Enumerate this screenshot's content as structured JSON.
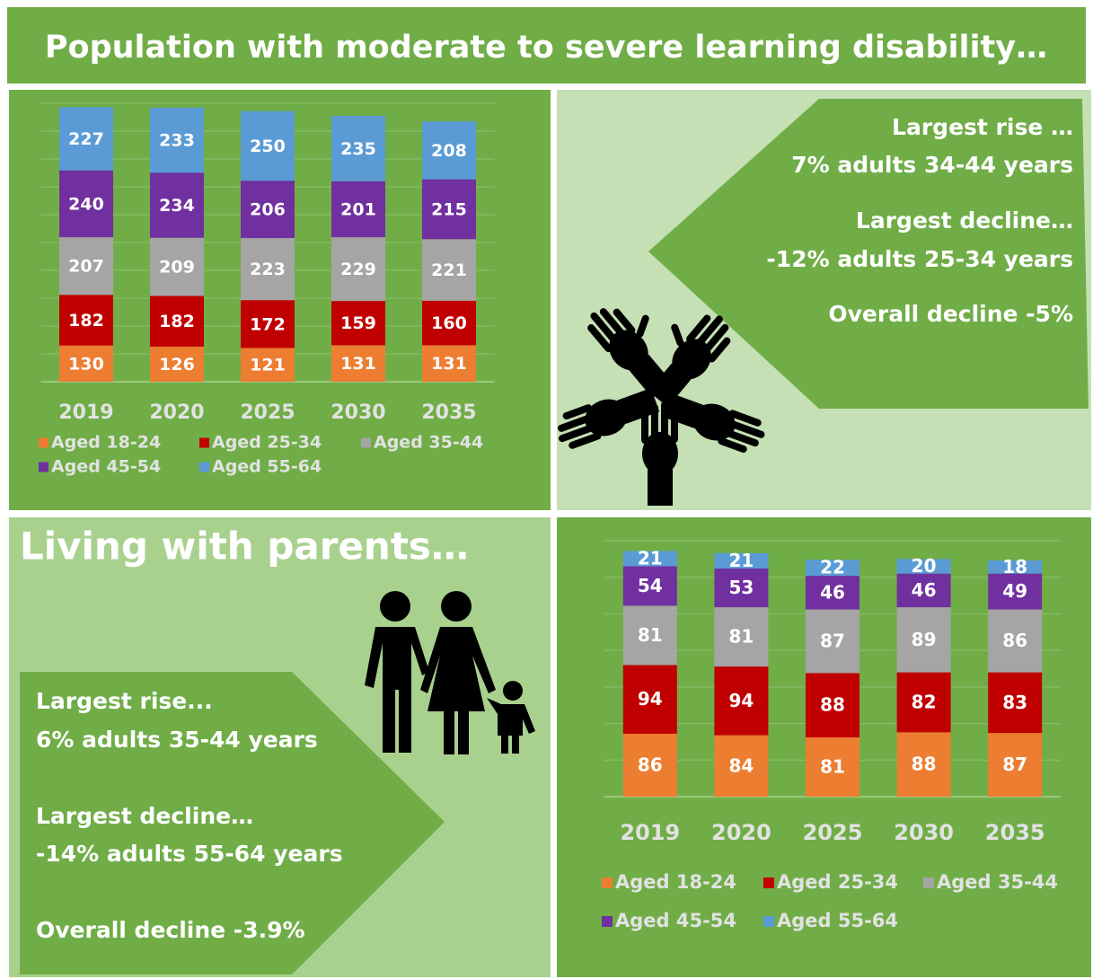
{
  "title": "Population with moderate to severe learning disability…",
  "summary": {
    "lines": [
      "Largest rise …",
      "7% adults 34-44 years",
      "Largest decline…",
      "-12% adults 25-34 years",
      "Overall decline -5%"
    ]
  },
  "parents": {
    "title": "Living with parents…",
    "lines": [
      "Largest rise...",
      "6% adults 35-44 years",
      "Largest decline…",
      "-14% adults 55-64 years",
      "Overall decline -3.9%"
    ]
  },
  "chart_data": [
    {
      "type": "stacked_bar",
      "categories": [
        "2019",
        "2020",
        "2025",
        "2030",
        "2035"
      ],
      "series": [
        {
          "name": "Aged 18-24",
          "color": "#ed7d31",
          "values": [
            130,
            126,
            121,
            131,
            131
          ]
        },
        {
          "name": "Aged 25-34",
          "color": "#c00000",
          "values": [
            182,
            182,
            172,
            159,
            160
          ]
        },
        {
          "name": "Aged 35-44",
          "color": "#a5a5a5",
          "values": [
            207,
            209,
            223,
            229,
            221
          ]
        },
        {
          "name": "Aged 45-54",
          "color": "#7030a0",
          "values": [
            240,
            234,
            206,
            201,
            215
          ]
        },
        {
          "name": "Aged 55-64",
          "color": "#5b9bd5",
          "values": [
            227,
            233,
            250,
            235,
            208
          ]
        }
      ],
      "ylim": [
        0,
        1000
      ],
      "yticks": [
        0,
        100,
        200,
        300,
        400,
        500,
        600,
        700,
        800,
        900,
        1000
      ],
      "grid": true,
      "legend": "bottom"
    },
    {
      "type": "stacked_bar",
      "categories": [
        "2019",
        "2020",
        "2025",
        "2030",
        "2035"
      ],
      "series": [
        {
          "name": "Aged 18-24",
          "color": "#ed7d31",
          "values": [
            86,
            84,
            81,
            88,
            87
          ]
        },
        {
          "name": "Aged 25-34",
          "color": "#c00000",
          "values": [
            94,
            94,
            88,
            82,
            83
          ]
        },
        {
          "name": "Aged 35-44",
          "color": "#a5a5a5",
          "values": [
            81,
            81,
            87,
            89,
            86
          ]
        },
        {
          "name": "Aged 45-54",
          "color": "#7030a0",
          "values": [
            54,
            53,
            46,
            46,
            49
          ]
        },
        {
          "name": "Aged 55-64",
          "color": "#5b9bd5",
          "values": [
            21,
            21,
            22,
            20,
            18
          ]
        }
      ],
      "ylim": [
        0,
        350
      ],
      "yticks": [
        0,
        50,
        100,
        150,
        200,
        250,
        300,
        350
      ],
      "grid": true,
      "legend": "bottom"
    }
  ]
}
